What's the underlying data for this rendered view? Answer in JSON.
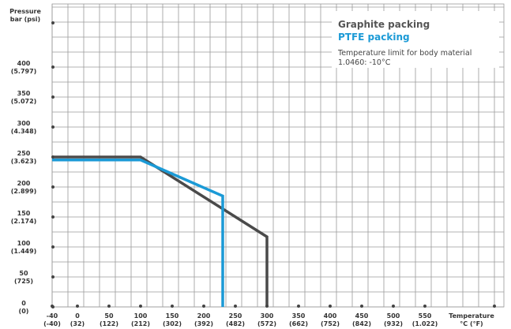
{
  "chart_data": {
    "type": "line",
    "x_axis_label": [
      "Temperature",
      "°C (°F)"
    ],
    "y_axis_label": [
      "Pressure",
      "bar (psi)"
    ],
    "x_ticks": [
      {
        "c": "-40",
        "f": "(-40)",
        "v": -40
      },
      {
        "c": "0",
        "f": "(32)",
        "v": 0
      },
      {
        "c": "50",
        "f": "(122)",
        "v": 50
      },
      {
        "c": "100",
        "f": "(212)",
        "v": 100
      },
      {
        "c": "150",
        "f": "(302)",
        "v": 150
      },
      {
        "c": "200",
        "f": "(392)",
        "v": 200
      },
      {
        "c": "250",
        "f": "(482)",
        "v": 250
      },
      {
        "c": "300",
        "f": "(572)",
        "v": 300
      },
      {
        "c": "350",
        "f": "(662)",
        "v": 350
      },
      {
        "c": "400",
        "f": "(752)",
        "v": 400
      },
      {
        "c": "450",
        "f": "(842)",
        "v": 450
      },
      {
        "c": "500",
        "f": "(932)",
        "v": 500
      },
      {
        "c": "550",
        "f": "(1.022)",
        "v": 550
      }
    ],
    "y_ticks": [
      {
        "bar": "0",
        "psi": "(0)",
        "v": 0
      },
      {
        "bar": "50",
        "psi": "(725)",
        "v": 50
      },
      {
        "bar": "100",
        "psi": "(1.449)",
        "v": 100
      },
      {
        "bar": "150",
        "psi": "(2.174)",
        "v": 150
      },
      {
        "bar": "200",
        "psi": "(2.899)",
        "v": 200
      },
      {
        "bar": "250",
        "psi": "(3.623)",
        "v": 250
      },
      {
        "bar": "300",
        "psi": "(4.348)",
        "v": 300
      },
      {
        "bar": "350",
        "psi": "(5.072)",
        "v": 350
      },
      {
        "bar": "400",
        "psi": "(5.797)",
        "v": 400
      }
    ],
    "xlim": [
      -40,
      600
    ],
    "ylim": [
      0,
      430
    ],
    "grid": true,
    "series": [
      {
        "name": "Graphite packing",
        "color": "#4a4a4a",
        "x": [
          -40,
          100,
          300,
          300
        ],
        "y": [
          250,
          250,
          117,
          0
        ]
      },
      {
        "name": "PTFE packing",
        "color": "#1b9ad6",
        "x": [
          -40,
          100,
          230,
          230
        ],
        "y": [
          245,
          245,
          185,
          0
        ]
      }
    ],
    "legend": {
      "position": "top-right",
      "graphite_label": "Graphite packing",
      "ptfe_label": "PTFE packing",
      "note": "Temperature limit for body material 1.0460: -10°C"
    }
  }
}
